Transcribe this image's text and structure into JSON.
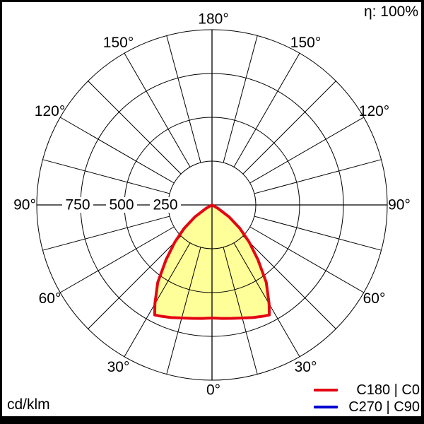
{
  "header": {
    "efficiency": "η: 100%"
  },
  "footer": {
    "units": "cd/klm"
  },
  "legend": {
    "items": [
      {
        "label": "C180 | C0",
        "color": "#e30613"
      },
      {
        "label": "C270 | C90",
        "color": "#0000d0"
      }
    ]
  },
  "chart_data": {
    "type": "line",
    "subtype": "polar photometric luminous-intensity distribution (gamma from nadir, 0° at bottom, 180° at top)",
    "units": "cd/klm",
    "grid": "on",
    "value_max": 1000,
    "rings": [
      {
        "value": 250,
        "label": "250"
      },
      {
        "value": 500,
        "label": "500"
      },
      {
        "value": 750,
        "label": "750"
      },
      {
        "value": 1000,
        "label": ""
      }
    ],
    "angle_step_deg": 15,
    "angle_labels": [
      {
        "deg": 0,
        "label": "0°"
      },
      {
        "deg": 30,
        "label": "30°"
      },
      {
        "deg": 60,
        "label": "60°"
      },
      {
        "deg": 90,
        "label": "90°"
      },
      {
        "deg": 120,
        "label": "120°"
      },
      {
        "deg": 150,
        "label": "150°"
      },
      {
        "deg": 180,
        "label": "180°"
      }
    ],
    "series": [
      {
        "name": "C180 | C0",
        "color": "#e30613",
        "fill": "#ffff99",
        "visible": true,
        "symmetric": true,
        "gamma_deg": [
          0,
          5,
          10,
          15,
          20,
          25,
          27.5,
          30,
          35,
          40,
          45,
          50,
          55,
          60,
          65
        ],
        "cd_per_klm": [
          645,
          650,
          657,
          668,
          684,
          700,
          708,
          652,
          540,
          408,
          300,
          208,
          118,
          40,
          0
        ]
      },
      {
        "name": "C270 | C90",
        "color": "#0000d0",
        "visible": false
      }
    ],
    "legend_position": "bottom-right"
  }
}
